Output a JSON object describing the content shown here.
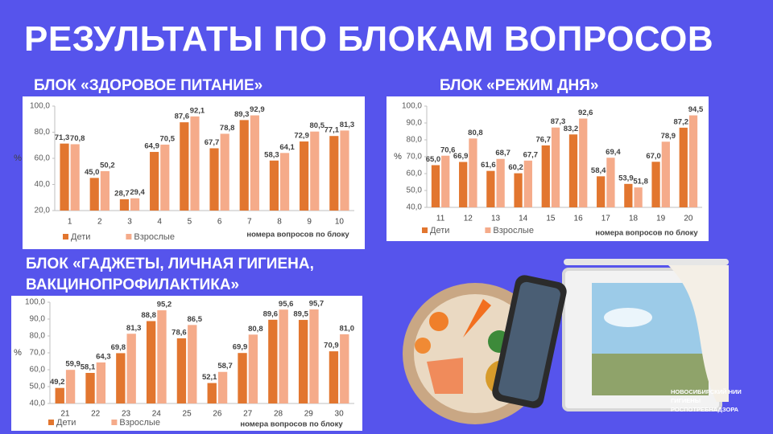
{
  "title": "РЕЗУЛЬТАТЫ ПО БЛОКАМ ВОПРОСОВ",
  "logo": [
    "НОВОСИБИРСКИЙ НИИ",
    "ГИГИЕНЫ",
    "РОСПОТРЕБНАДЗОРА"
  ],
  "chart_data": [
    {
      "type": "bar",
      "title": "БЛОК «ЗДОРОВОЕ ПИТАНИЕ»",
      "y_label": "%",
      "x_label": "номера вопросов  по блоку",
      "legend": "bottom-left",
      "grid": false,
      "categories": [
        "1",
        "2",
        "3",
        "4",
        "5",
        "6",
        "7",
        "8",
        "9",
        "10"
      ],
      "ylim": [
        20,
        100
      ],
      "yticks": [
        {
          "value": 20,
          "label": "20,0"
        },
        {
          "value": 40,
          "label": "40,0"
        },
        {
          "value": 60,
          "label": "60,0"
        },
        {
          "value": 80,
          "label": "80,0"
        },
        {
          "value": 100,
          "label": "100,0"
        }
      ],
      "series": [
        {
          "name": "Дети",
          "color": "#e2762f",
          "values": [
            71.3,
            45.0,
            28.7,
            64.9,
            87.6,
            67.7,
            89.3,
            58.3,
            72.9,
            77.1
          ],
          "value_labels": [
            "71,3",
            "45,0",
            "28,7",
            "64,9",
            "87,6",
            "67,7",
            "89,3",
            "58,3",
            "72,9",
            "77,1"
          ]
        },
        {
          "name": "Взрослые",
          "color": "#f5ab8a",
          "values": [
            70.8,
            50.2,
            29.4,
            70.5,
            92.1,
            78.8,
            92.9,
            64.1,
            80.5,
            81.3
          ],
          "value_labels": [
            "70,8",
            "50,2",
            "29,4",
            "70,5",
            "92,1",
            "78,8",
            "92,9",
            "64,1",
            "80,5",
            "81,3"
          ]
        }
      ]
    },
    {
      "type": "bar",
      "title": "БЛОК «РЕЖИМ ДНЯ»",
      "y_label": "%",
      "x_label": "номера вопросов  по блоку",
      "legend": "bottom-left",
      "grid": false,
      "categories": [
        "11",
        "12",
        "13",
        "14",
        "15",
        "16",
        "17",
        "18",
        "19",
        "20"
      ],
      "ylim": [
        40,
        100
      ],
      "yticks": [
        {
          "value": 40,
          "label": "40,0"
        },
        {
          "value": 50,
          "label": "50,0"
        },
        {
          "value": 60,
          "label": "60,0"
        },
        {
          "value": 70,
          "label": "70,0"
        },
        {
          "value": 80,
          "label": "80,0"
        },
        {
          "value": 90,
          "label": "90,0"
        },
        {
          "value": 100,
          "label": "100,0"
        }
      ],
      "series": [
        {
          "name": "Дети",
          "color": "#e2762f",
          "values": [
            65.0,
            66.9,
            61.6,
            60.2,
            76.7,
            83.2,
            58.4,
            53.9,
            67.0,
            87.2
          ],
          "value_labels": [
            "65,0",
            "66,9",
            "61,6",
            "60,2",
            "76,7",
            "83,2",
            "58,4",
            "53,9",
            "67,0",
            "87,2"
          ]
        },
        {
          "name": "Взрослые",
          "color": "#f5ab8a",
          "values": [
            70.6,
            80.8,
            68.7,
            67.7,
            87.3,
            92.6,
            69.4,
            51.8,
            78.9,
            94.5
          ],
          "value_labels": [
            "70,6",
            "80,8",
            "68,7",
            "67,7",
            "87,3",
            "92,6",
            "69,4",
            "51,8",
            "78,9",
            "94,5"
          ]
        }
      ]
    },
    {
      "type": "bar",
      "title": "БЛОК «ГАДЖЕТЫ, ЛИЧНАЯ ГИГИЕНА, ВАКЦИНОПРОФИЛАКТИКА»",
      "y_label": "%",
      "x_label": "номера вопросов  по блоку",
      "legend": "bottom-left",
      "grid": false,
      "categories": [
        "21",
        "22",
        "23",
        "24",
        "25",
        "26",
        "27",
        "28",
        "29",
        "30"
      ],
      "ylim": [
        40,
        100
      ],
      "yticks": [
        {
          "value": 40,
          "label": "40,0"
        },
        {
          "value": 50,
          "label": "50,0"
        },
        {
          "value": 60,
          "label": "60,0"
        },
        {
          "value": 70,
          "label": "70,0"
        },
        {
          "value": 80,
          "label": "80,0"
        },
        {
          "value": 90,
          "label": "90,0"
        },
        {
          "value": 100,
          "label": "100,0"
        }
      ],
      "series": [
        {
          "name": "Дети",
          "color": "#e2762f",
          "values": [
            49.2,
            58.1,
            69.8,
            88.8,
            78.6,
            52.1,
            69.9,
            89.6,
            89.5,
            70.9
          ],
          "value_labels": [
            "49,2",
            "58,1",
            "69,8",
            "88,8",
            "78,6",
            "52,1",
            "69,9",
            "89,6",
            "89,5",
            "70,9"
          ]
        },
        {
          "name": "Взрослые",
          "color": "#f5ab8a",
          "values": [
            59.9,
            64.3,
            81.3,
            95.2,
            86.5,
            58.7,
            80.8,
            95.6,
            95.7,
            81.0
          ],
          "value_labels": [
            "59,9",
            "64,3",
            "81,3",
            "95,2",
            "86,5",
            "58,7",
            "80,8",
            "95,6",
            "95,7",
            "81,0"
          ]
        }
      ]
    }
  ]
}
